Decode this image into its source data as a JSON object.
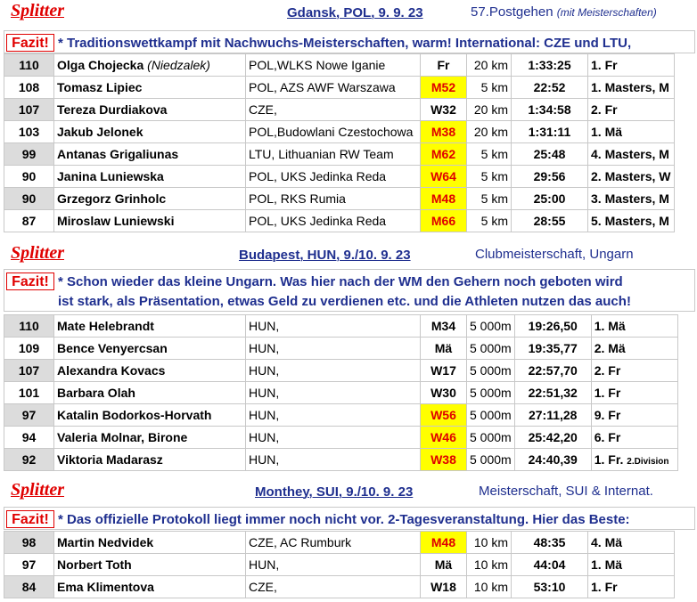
{
  "sections": [
    {
      "brand": "Splitter",
      "location": "Gdansk, POL, 9. 9. 23",
      "event": "57.Postgehen",
      "event_note": "(mit Meisterschaften)",
      "fazit_label": "Fazit!",
      "fazit_lines": [
        "* Traditionswettkampf mit Nachwuchs-Meisterschaften, warm! International: CZE und LTU,"
      ],
      "rows": [
        {
          "pts": "110",
          "name": "Olga Chojecka",
          "alt": "(Niedzalek)",
          "club": "POL,WLKS Nowe Iganie",
          "cat": "Fr",
          "hl": false,
          "dist": "20 km",
          "time": "1:33:25",
          "place": "1. Fr",
          "place_small": ""
        },
        {
          "pts": "108",
          "name": "Tomasz Lipiec",
          "alt": "",
          "club": "POL, AZS AWF Warszawa",
          "cat": "M52",
          "hl": true,
          "dist": "5 km",
          "time": "22:52",
          "place": "1. Masters, M",
          "place_small": ""
        },
        {
          "pts": "107",
          "name": "Tereza Durdiakova",
          "alt": "",
          "club": "CZE,",
          "cat": "W32",
          "hl": false,
          "dist": "20 km",
          "time": "1:34:58",
          "place": "2. Fr",
          "place_small": ""
        },
        {
          "pts": "103",
          "name": "Jakub Jelonek",
          "alt": "",
          "club": "POL,Budowlani Czestochowa",
          "cat": "M38",
          "hl": true,
          "dist": "20 km",
          "time": "1:31:11",
          "place": "1. Mä",
          "place_small": ""
        },
        {
          "pts": "99",
          "name": "Antanas Grigaliunas",
          "alt": "",
          "club": "LTU, Lithuanian RW Team",
          "cat": "M62",
          "hl": true,
          "dist": "5 km",
          "time": "25:48",
          "place": "4. Masters, M",
          "place_small": ""
        },
        {
          "pts": "90",
          "name": "Janina Luniewska",
          "alt": "",
          "club": "POL, UKS Jedinka Reda",
          "cat": "W64",
          "hl": true,
          "dist": "5 km",
          "time": "29:56",
          "place": "2. Masters, W",
          "place_small": ""
        },
        {
          "pts": "90",
          "name": "Grzegorz Grinholc",
          "alt": "",
          "club": "POL, RKS Rumia",
          "cat": "M48",
          "hl": true,
          "dist": "5 km",
          "time": "25:00",
          "place": "3. Masters, M",
          "place_small": ""
        },
        {
          "pts": "87",
          "name": "Miroslaw Luniewski",
          "alt": "",
          "club": "POL, UKS Jedinka Reda",
          "cat": "M66",
          "hl": true,
          "dist": "5 km",
          "time": "28:55",
          "place": "5. Masters, M",
          "place_small": ""
        }
      ]
    },
    {
      "brand": "Splitter",
      "location": "Budapest, HUN, 9./10. 9. 23",
      "event": "Clubmeisterschaft, Ungarn",
      "event_note": "",
      "fazit_label": "Fazit!",
      "fazit_lines": [
        "* Schon wieder das kleine Ungarn. Was hier nach der WM den Gehern noch geboten wird",
        "ist stark, als Präsentation, etwas Geld zu verdienen etc. und die Athleten nutzen das auch!"
      ],
      "rows": [
        {
          "pts": "110",
          "name": "Mate Helebrandt",
          "alt": "",
          "club": "HUN,",
          "cat": "M34",
          "hl": false,
          "dist": "5 000m",
          "time": "19:26,50",
          "place": "1. Mä",
          "place_small": ""
        },
        {
          "pts": "109",
          "name": "Bence Venyercsan",
          "alt": "",
          "club": "HUN,",
          "cat": "Mä",
          "hl": false,
          "dist": "5 000m",
          "time": "19:35,77",
          "place": "2. Mä",
          "place_small": ""
        },
        {
          "pts": "107",
          "name": "Alexandra Kovacs",
          "alt": "",
          "club": "HUN,",
          "cat": "W17",
          "hl": false,
          "dist": "5 000m",
          "time": "22:57,70",
          "place": "2. Fr",
          "place_small": ""
        },
        {
          "pts": "101",
          "name": "Barbara Olah",
          "alt": "",
          "club": "HUN,",
          "cat": "W30",
          "hl": false,
          "dist": "5 000m",
          "time": "22:51,32",
          "place": "1. Fr",
          "place_small": ""
        },
        {
          "pts": "97",
          "name": "Katalin Bodorkos-Horvath",
          "alt": "",
          "club": "HUN,",
          "cat": "W56",
          "hl": true,
          "dist": "5 000m",
          "time": "27:11,28",
          "place": "9. Fr",
          "place_small": ""
        },
        {
          "pts": "94",
          "name": "Valeria Molnar, Birone",
          "alt": "",
          "club": "HUN,",
          "cat": "W46",
          "hl": true,
          "dist": "5 000m",
          "time": "25:42,20",
          "place": "6. Fr",
          "place_small": ""
        },
        {
          "pts": "92",
          "name": "Viktoria Madarasz",
          "alt": "",
          "club": "HUN,",
          "cat": "W38",
          "hl": true,
          "dist": "5 000m",
          "time": "24:40,39",
          "place": "1. Fr.",
          "place_small": "2.Division"
        }
      ]
    },
    {
      "brand": "Splitter",
      "location": "Monthey, SUI, 9./10. 9. 23",
      "event": "Meisterschaft, SUI & Internat.",
      "event_note": "",
      "fazit_label": "Fazit!",
      "fazit_lines": [
        "* Das offizielle Protokoll liegt immer noch nicht vor. 2-Tagesveranstaltung. Hier das Beste:"
      ],
      "rows": [
        {
          "pts": "98",
          "name": "Martin Nedvidek",
          "alt": "",
          "club": "CZE, AC Rumburk",
          "cat": "M48",
          "hl": true,
          "dist": "10 km",
          "time": "48:35",
          "place": "4. Mä",
          "place_small": ""
        },
        {
          "pts": "97",
          "name": "Norbert Toth",
          "alt": "",
          "club": "HUN,",
          "cat": "Mä",
          "hl": false,
          "dist": "10 km",
          "time": "44:04",
          "place": "1. Mä",
          "place_small": ""
        },
        {
          "pts": "84",
          "name": "Ema Klimentova",
          "alt": "",
          "club": "CZE,",
          "cat": "W18",
          "hl": false,
          "dist": "10 km",
          "time": "53:10",
          "place": "1. Fr",
          "place_small": ""
        }
      ]
    }
  ]
}
